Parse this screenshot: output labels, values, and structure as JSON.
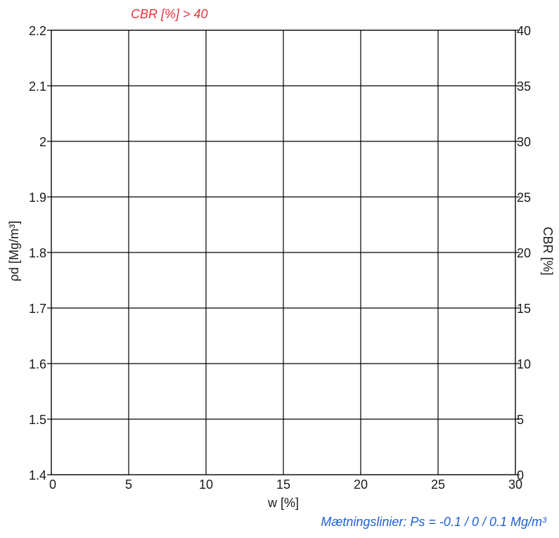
{
  "chart_data": {
    "type": "scatter",
    "top_annotation": "CBR [%] > 40",
    "bottom_annotation": "Mætningslinier: Ps = -0.1 / 0 / 0.1 Mg/m³",
    "xlabel": "w [%]",
    "ylabel": "ρd [Mg/m³]",
    "y2label": "CBR [%]",
    "xlim": [
      0,
      30
    ],
    "ylim": [
      1.4,
      2.2
    ],
    "y2lim": [
      0,
      40
    ],
    "xticks": [
      "0",
      "5",
      "10",
      "15",
      "20",
      "25",
      "30"
    ],
    "yticks": [
      "1.4",
      "1.5",
      "1.6",
      "1.7",
      "1.8",
      "1.9",
      "2",
      "2.1",
      "2.2"
    ],
    "y2ticks": [
      "0",
      "5",
      "10",
      "15",
      "20",
      "25",
      "30",
      "35",
      "40"
    ],
    "grid": true,
    "series": [],
    "colors": {
      "top_annotation": "#e8343d",
      "bottom_annotation": "#1f5fd6",
      "grid": "#000000"
    }
  }
}
